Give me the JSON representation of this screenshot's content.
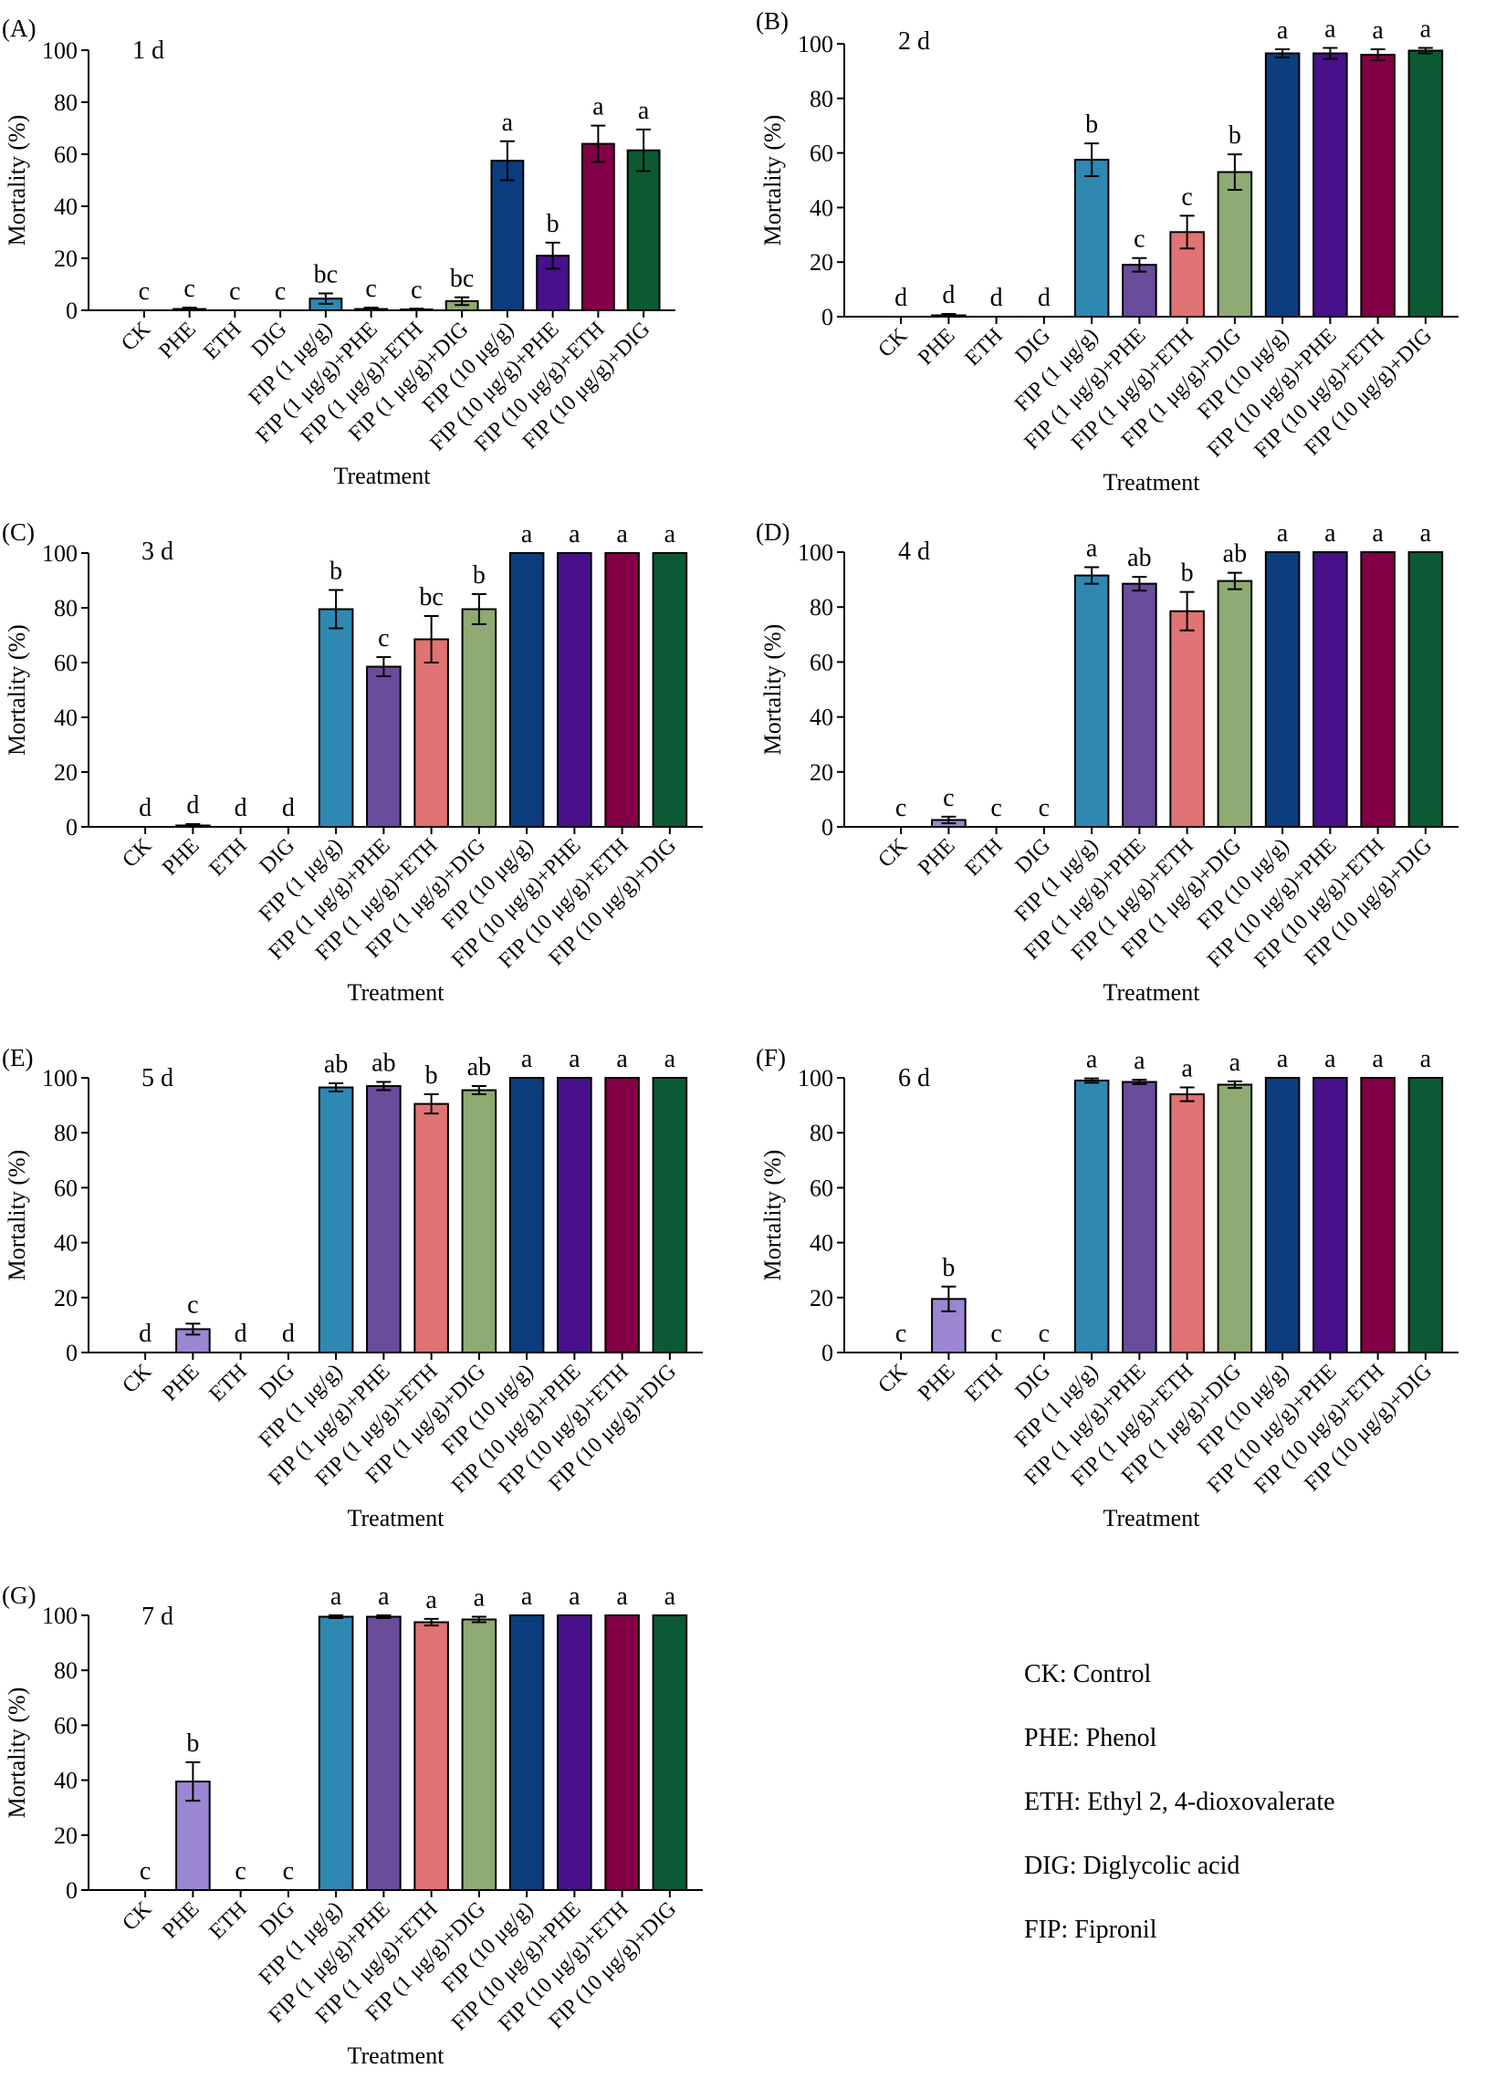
{
  "figure": {
    "ylabel": "Mortality (%)",
    "xlabel": "Treatment",
    "yticks": [
      0,
      20,
      40,
      60,
      80,
      100
    ],
    "ylim": [
      0,
      100
    ]
  },
  "colors": [
    "#ffffff",
    "#9b86d2",
    "#ffffff",
    "#ffffff",
    "#2f88b2",
    "#6a4c9c",
    "#e07373",
    "#8faa72",
    "#0b3d7f",
    "#48108a",
    "#820045",
    "#0c5a33"
  ],
  "chart_data": [
    {
      "type": "bar",
      "panel": "(A)",
      "title": "1 d",
      "categories": [
        "CK",
        "PHE",
        "ETH",
        "DIG",
        "FIP (1 μg/g)",
        "FIP (1 μg/g)+PHE",
        "FIP (1 μg/g)+ETH",
        "FIP (1 μg/g)+DIG",
        "FIP (10 μg/g)",
        "FIP (10 μg/g)+PHE",
        "FIP (10 μg/g)+ETH",
        "FIP (10 μg/g)+DIG"
      ],
      "values": [
        0,
        0.5,
        0,
        0,
        4.5,
        0.5,
        0.3,
        3.5,
        57.5,
        21,
        64,
        61.5
      ],
      "errors": [
        0,
        0.5,
        0,
        0,
        2,
        0.5,
        0.3,
        1.5,
        7.5,
        5,
        7,
        8
      ],
      "letters": [
        "c",
        "c",
        "c",
        "c",
        "bc",
        "c",
        "c",
        "bc",
        "a",
        "b",
        "a",
        "a"
      ],
      "xlabel": "Treatment",
      "ylabel": "Mortality (%)",
      "ylim": [
        0,
        100
      ]
    },
    {
      "type": "bar",
      "panel": "(B)",
      "title": "2 d",
      "categories": [
        "CK",
        "PHE",
        "ETH",
        "DIG",
        "FIP (1 μg/g)",
        "FIP (1 μg/g)+PHE",
        "FIP (1 μg/g)+ETH",
        "FIP (1 μg/g)+DIG",
        "FIP (10 μg/g)",
        "FIP (10 μg/g)+PHE",
        "FIP (10 μg/g)+ETH",
        "FIP (10 μg/g)+DIG"
      ],
      "values": [
        0,
        0.5,
        0,
        0,
        57.5,
        19,
        31,
        53,
        96.5,
        96.5,
        96,
        97.5
      ],
      "errors": [
        0,
        0.5,
        0,
        0,
        6,
        2.5,
        6,
        6.5,
        1.5,
        2,
        2,
        1
      ],
      "letters": [
        "d",
        "d",
        "d",
        "d",
        "b",
        "c",
        "c",
        "b",
        "a",
        "a",
        "a",
        "a"
      ],
      "xlabel": "Treatment",
      "ylabel": "Mortality (%)",
      "ylim": [
        0,
        100
      ]
    },
    {
      "type": "bar",
      "panel": "(C)",
      "title": "3 d",
      "categories": [
        "CK",
        "PHE",
        "ETH",
        "DIG",
        "FIP (1 μg/g)",
        "FIP (1 μg/g)+PHE",
        "FIP (1 μg/g)+ETH",
        "FIP (1 μg/g)+DIG",
        "FIP (10 μg/g)",
        "FIP (10 μg/g)+PHE",
        "FIP (10 μg/g)+ETH",
        "FIP (10 μg/g)+DIG"
      ],
      "values": [
        0,
        0.5,
        0,
        0,
        79.5,
        58.5,
        68.5,
        79.5,
        100,
        100,
        100,
        100
      ],
      "errors": [
        0,
        0.5,
        0,
        0,
        7,
        3.5,
        8.5,
        5.5,
        0,
        0,
        0,
        0
      ],
      "letters": [
        "d",
        "d",
        "d",
        "d",
        "b",
        "c",
        "bc",
        "b",
        "a",
        "a",
        "a",
        "a"
      ],
      "xlabel": "Treatment",
      "ylabel": "Mortality (%)",
      "ylim": [
        0,
        100
      ]
    },
    {
      "type": "bar",
      "panel": "(D)",
      "title": "4 d",
      "categories": [
        "CK",
        "PHE",
        "ETH",
        "DIG",
        "FIP (1 μg/g)",
        "FIP (1 μg/g)+PHE",
        "FIP (1 μg/g)+ETH",
        "FIP (1 μg/g)+DIG",
        "FIP (10 μg/g)",
        "FIP (10 μg/g)+PHE",
        "FIP (10 μg/g)+ETH",
        "FIP (10 μg/g)+DIG"
      ],
      "values": [
        0,
        2.5,
        0,
        0,
        91.5,
        88.5,
        78.5,
        89.5,
        100,
        100,
        100,
        100
      ],
      "errors": [
        0,
        1.2,
        0,
        0,
        3,
        2.5,
        7,
        3,
        0,
        0,
        0,
        0
      ],
      "letters": [
        "c",
        "c",
        "c",
        "c",
        "a",
        "ab",
        "b",
        "ab",
        "a",
        "a",
        "a",
        "a"
      ],
      "xlabel": "Treatment",
      "ylabel": "Mortality (%)",
      "ylim": [
        0,
        100
      ]
    },
    {
      "type": "bar",
      "panel": "(E)",
      "title": "5 d",
      "categories": [
        "CK",
        "PHE",
        "ETH",
        "DIG",
        "FIP (1 μg/g)",
        "FIP (1 μg/g)+PHE",
        "FIP (1 μg/g)+ETH",
        "FIP (1 μg/g)+DIG",
        "FIP (10 μg/g)",
        "FIP (10 μg/g)+PHE",
        "FIP (10 μg/g)+ETH",
        "FIP (10 μg/g)+DIG"
      ],
      "values": [
        0,
        8.5,
        0,
        0,
        96.5,
        97,
        90.5,
        95.5,
        100,
        100,
        100,
        100
      ],
      "errors": [
        0,
        2,
        0,
        0,
        1.5,
        1.5,
        3.5,
        1.5,
        0,
        0,
        0,
        0
      ],
      "letters": [
        "d",
        "c",
        "d",
        "d",
        "ab",
        "ab",
        "b",
        "ab",
        "a",
        "a",
        "a",
        "a"
      ],
      "xlabel": "Treatment",
      "ylabel": "Mortality (%)",
      "ylim": [
        0,
        100
      ]
    },
    {
      "type": "bar",
      "panel": "(F)",
      "title": "6 d",
      "categories": [
        "CK",
        "PHE",
        "ETH",
        "DIG",
        "FIP (1 μg/g)",
        "FIP (1 μg/g)+PHE",
        "FIP (1 μg/g)+ETH",
        "FIP (1 μg/g)+DIG",
        "FIP (10 μg/g)",
        "FIP (10 μg/g)+PHE",
        "FIP (10 μg/g)+ETH",
        "FIP (10 μg/g)+DIG"
      ],
      "values": [
        0,
        19.5,
        0,
        0,
        99,
        98.5,
        94,
        97.5,
        100,
        100,
        100,
        100
      ],
      "errors": [
        0,
        4.5,
        0,
        0,
        0.8,
        0.8,
        2.5,
        1.2,
        0,
        0,
        0,
        0
      ],
      "letters": [
        "c",
        "b",
        "c",
        "c",
        "a",
        "a",
        "a",
        "a",
        "a",
        "a",
        "a",
        "a"
      ],
      "xlabel": "Treatment",
      "ylabel": "Mortality (%)",
      "ylim": [
        0,
        100
      ]
    },
    {
      "type": "bar",
      "panel": "(G)",
      "title": "7 d",
      "categories": [
        "CK",
        "PHE",
        "ETH",
        "DIG",
        "FIP (1 μg/g)",
        "FIP (1 μg/g)+PHE",
        "FIP (1 μg/g)+ETH",
        "FIP (1 μg/g)+DIG",
        "FIP (10 μg/g)",
        "FIP (10 μg/g)+PHE",
        "FIP (10 μg/g)+ETH",
        "FIP (10 μg/g)+DIG"
      ],
      "values": [
        0,
        39.5,
        0,
        0,
        99.5,
        99.5,
        97.5,
        98.5,
        100,
        100,
        100,
        100
      ],
      "errors": [
        0,
        7,
        0,
        0,
        0.5,
        0.5,
        1.2,
        1,
        0,
        0,
        0,
        0
      ],
      "letters": [
        "c",
        "b",
        "c",
        "c",
        "a",
        "a",
        "a",
        "a",
        "a",
        "a",
        "a",
        "a"
      ],
      "xlabel": "Treatment",
      "ylabel": "Mortality (%)",
      "ylim": [
        0,
        100
      ]
    }
  ],
  "legend": [
    "CK: Control",
    "PHE: Phenol",
    "ETH: Ethyl 2, 4-dioxovalerate",
    "DIG: Diglycolic acid",
    "FIP: Fipronil"
  ]
}
